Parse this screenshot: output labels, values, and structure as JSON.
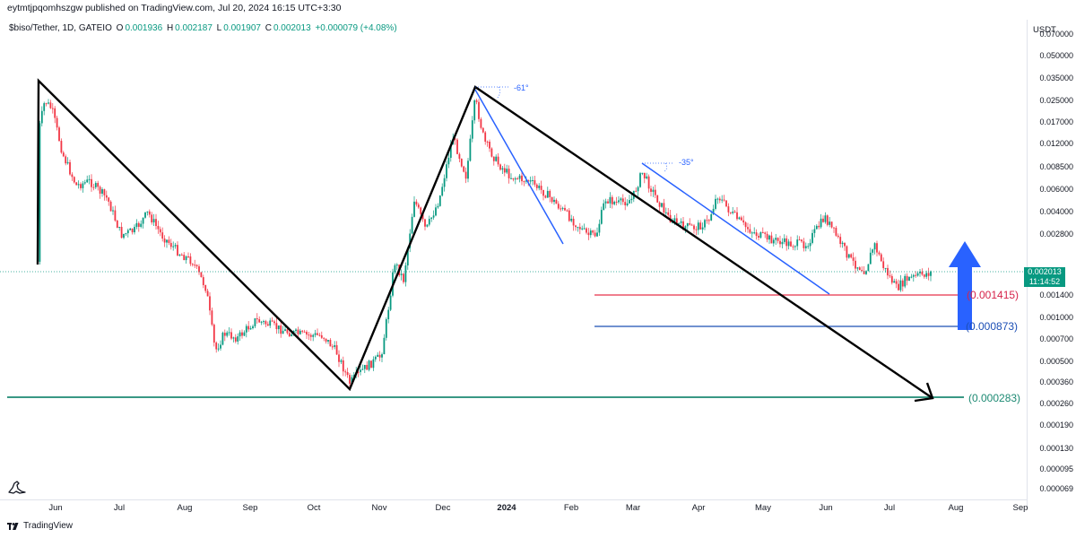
{
  "header": {
    "published": "eytmtjpqomhszgw published on TradingView.com, Jul 20, 2024 16:15 UTC+3:30"
  },
  "legend": {
    "symbol": "$biso/Tether, 1D, GATEIO",
    "open_label": "O",
    "open": "0.001936",
    "high_label": "H",
    "high": "0.002187",
    "low_label": "L",
    "low": "0.001907",
    "close_label": "C",
    "close": "0.002013",
    "change": "+0.000079 (+4.08%)"
  },
  "price_scale": {
    "currency": "USDT",
    "ticks": [
      "0.070000",
      "0.050000",
      "0.035000",
      "0.025000",
      "0.017000",
      "0.012000",
      "0.008500",
      "0.006000",
      "0.004000",
      "0.002800",
      "0.002013",
      "0.001400",
      "0.001000",
      "0.000700",
      "0.000500",
      "0.000360",
      "0.000260",
      "0.000190",
      "0.000130",
      "0.000095",
      "0.000069"
    ]
  },
  "current_price": {
    "value": "0.002013",
    "countdown": "11:14:52"
  },
  "time_scale": {
    "ticks": [
      "Jun",
      "Jul",
      "Aug",
      "Sep",
      "Oct",
      "Nov",
      "Dec",
      "2024",
      "Feb",
      "Mar",
      "Apr",
      "May",
      "Jun",
      "Jul",
      "Aug",
      "Sep"
    ]
  },
  "levels": {
    "red": "(0.001415)",
    "blue": "(0.000873)",
    "green": "(0.000283)"
  },
  "annotations": {
    "angle_a": "-61°",
    "angle_b": "-35°"
  },
  "colors": {
    "up": "#089981",
    "down": "#f23645",
    "red_level": "#e8304a",
    "blue_level": "#1c4fb5",
    "green_level": "#1d8a73",
    "arrow_blue": "#2962ff"
  },
  "footer": {
    "brand": "TradingView"
  }
}
